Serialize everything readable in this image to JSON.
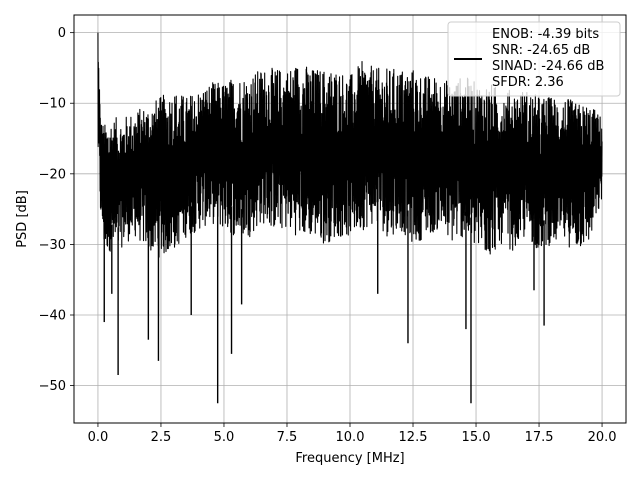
{
  "chart_data": {
    "type": "line",
    "title": "",
    "xlabel": "Frequency [MHz]",
    "ylabel": "PSD [dB]",
    "xlim": [
      -0.95,
      20.95
    ],
    "ylim": [
      -55.3,
      2.5
    ],
    "xticks": [
      0.0,
      2.5,
      5.0,
      7.5,
      10.0,
      12.5,
      15.0,
      17.5,
      20.0
    ],
    "xtick_labels": [
      "0.0",
      "2.5",
      "5.0",
      "7.5",
      "10.0",
      "12.5",
      "15.0",
      "17.5",
      "20.0"
    ],
    "yticks": [
      0,
      -10,
      -20,
      -30,
      -40,
      -50
    ],
    "ytick_labels": [
      "0",
      "−10",
      "−20",
      "−30",
      "−40",
      "−50"
    ],
    "grid": true,
    "legend": {
      "placement": "top-right",
      "lines": [
        "ENOB: -4.39 bits",
        "SNR: -24.65 dB",
        "SINAD: -24.66 dB",
        "SFDR: 2.36"
      ]
    },
    "series": [
      {
        "color": "#000000",
        "description": "noisy PSD trace from 0 to 20 MHz",
        "x": [
          0.0,
          0.05,
          0.1,
          0.25,
          0.5,
          0.75,
          1.0,
          1.5,
          2.0,
          2.5,
          3.0,
          3.5,
          4.0,
          4.5,
          5.0,
          5.5,
          6.0,
          6.5,
          7.0,
          7.5,
          8.0,
          8.5,
          9.0,
          9.5,
          10.0,
          10.5,
          11.0,
          11.5,
          12.0,
          12.5,
          13.0,
          13.5,
          14.0,
          14.5,
          15.0,
          15.5,
          16.0,
          16.5,
          17.0,
          17.5,
          18.0,
          18.5,
          19.0,
          19.5,
          20.0
        ],
        "upper": [
          0.0,
          -4.0,
          -12.0,
          -13.0,
          -12.0,
          -12.0,
          -12.0,
          -11.0,
          -10.0,
          -9.0,
          -8.0,
          -9.0,
          -8.0,
          -7.0,
          -7.0,
          -6.0,
          -6.0,
          -5.0,
          -5.0,
          -5.0,
          -4.0,
          -5.0,
          -5.0,
          -5.0,
          -6.0,
          -4.0,
          -5.0,
          -5.0,
          -5.0,
          -5.0,
          -6.0,
          -6.0,
          -7.0,
          -6.0,
          -7.0,
          -7.0,
          -8.0,
          -8.0,
          -8.0,
          -9.0,
          -9.0,
          -9.0,
          -10.0,
          -10.0,
          -12.0
        ],
        "lower": [
          -18.0,
          -22.0,
          -26.0,
          -31.0,
          -31.0,
          -32.0,
          -30.0,
          -29.0,
          -31.0,
          -32.0,
          -31.0,
          -29.0,
          -28.0,
          -27.0,
          -28.0,
          -29.0,
          -29.0,
          -27.0,
          -28.0,
          -28.0,
          -29.0,
          -29.0,
          -30.0,
          -29.0,
          -29.0,
          -28.0,
          -27.0,
          -29.0,
          -28.0,
          -30.0,
          -29.0,
          -28.0,
          -30.0,
          -29.0,
          -31.0,
          -32.0,
          -30.0,
          -31.0,
          -29.0,
          -31.0,
          -30.0,
          -30.0,
          -31.0,
          -30.0,
          -24.0
        ],
        "dips": [
          {
            "x": 0.25,
            "y": -41.0
          },
          {
            "x": 0.55,
            "y": -37.0
          },
          {
            "x": 0.8,
            "y": -48.5
          },
          {
            "x": 2.0,
            "y": -43.5
          },
          {
            "x": 2.4,
            "y": -46.5
          },
          {
            "x": 3.7,
            "y": -40.0
          },
          {
            "x": 4.75,
            "y": -52.5
          },
          {
            "x": 5.3,
            "y": -45.5
          },
          {
            "x": 5.7,
            "y": -38.5
          },
          {
            "x": 12.3,
            "y": -44.0
          },
          {
            "x": 11.1,
            "y": -37.0
          },
          {
            "x": 14.6,
            "y": -42.0
          },
          {
            "x": 14.8,
            "y": -52.5
          },
          {
            "x": 17.7,
            "y": -41.5
          },
          {
            "x": 17.3,
            "y": -36.5
          }
        ]
      }
    ]
  }
}
